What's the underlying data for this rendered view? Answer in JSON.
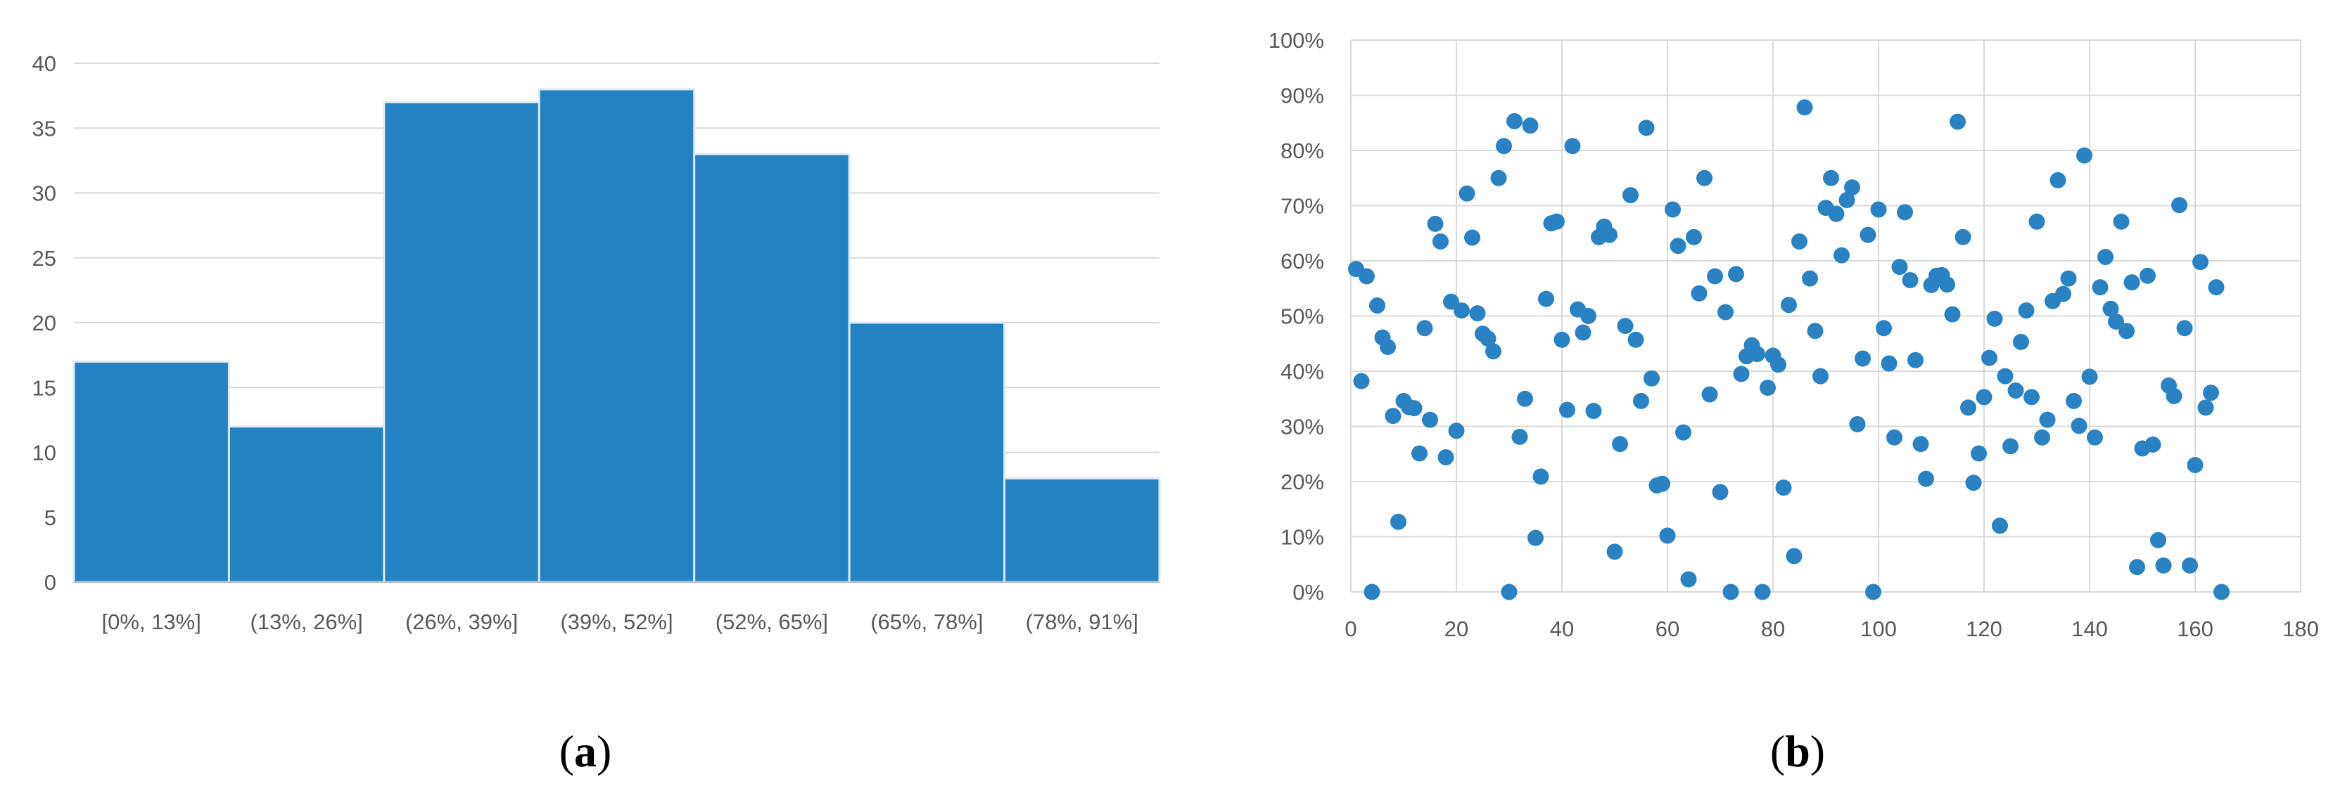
{
  "colors": {
    "bar": "#2582c2",
    "bar_edge": "#dceaf6",
    "point": "#2a82c2",
    "grid": "#d9d9d9",
    "axis": "#bfbfbf",
    "tick_text": "#595959"
  },
  "panels": {
    "a": {
      "label_open": "(",
      "label_letter": "a",
      "label_close": ")"
    },
    "b": {
      "label_open": "(",
      "label_letter": "b",
      "label_close": ")"
    }
  },
  "chart_data": [
    {
      "type": "bar",
      "title": "",
      "xlabel": "",
      "ylabel": "",
      "categories": [
        "[0%, 13%]",
        "(13%, 26%]",
        "(26%, 39%]",
        "(39%, 52%]",
        "(52%, 65%]",
        "(65%, 78%]",
        "(78%, 91%]"
      ],
      "values": [
        17,
        12,
        37,
        38,
        33,
        20,
        8
      ],
      "ylim": [
        0,
        40
      ],
      "yticks": [
        0,
        5,
        10,
        15,
        20,
        25,
        30,
        35,
        40
      ],
      "yticklabels": [
        "0",
        "5",
        "10",
        "15",
        "20",
        "25",
        "30",
        "35",
        "40"
      ],
      "grid": true,
      "legend": "none"
    },
    {
      "type": "scatter",
      "title": "",
      "xlabel": "",
      "ylabel": "",
      "xlim": [
        0,
        180
      ],
      "ylim": [
        0,
        100
      ],
      "xticks": [
        0,
        20,
        40,
        60,
        80,
        100,
        120,
        140,
        160,
        180
      ],
      "xticklabels": [
        "0",
        "20",
        "40",
        "60",
        "80",
        "100",
        "120",
        "140",
        "160",
        "180"
      ],
      "yticks": [
        0,
        10,
        20,
        30,
        40,
        50,
        60,
        70,
        80,
        90,
        100
      ],
      "yticklabels": [
        "0%",
        "10%",
        "20%",
        "30%",
        "40%",
        "50%",
        "60%",
        "70%",
        "80%",
        "90%",
        "100%"
      ],
      "grid": true,
      "legend": "none",
      "x": [
        1,
        2,
        3,
        4,
        5,
        6,
        7,
        8,
        9,
        10,
        11,
        12,
        13,
        14,
        15,
        16,
        17,
        18,
        19,
        20,
        21,
        22,
        23,
        24,
        25,
        26,
        27,
        28,
        29,
        30,
        31,
        32,
        33,
        34,
        35,
        36,
        37,
        38,
        39,
        40,
        41,
        42,
        43,
        44,
        45,
        46,
        47,
        48,
        49,
        50,
        51,
        52,
        53,
        54,
        55,
        56,
        57,
        58,
        59,
        60,
        61,
        62,
        63,
        64,
        65,
        66,
        67,
        68,
        69,
        70,
        71,
        72,
        73,
        74,
        75,
        76,
        77,
        78,
        79,
        80,
        81,
        82,
        83,
        84,
        85,
        86,
        87,
        88,
        89,
        90,
        91,
        92,
        93,
        94,
        95,
        96,
        97,
        98,
        99,
        100,
        101,
        102,
        103,
        104,
        105,
        106,
        107,
        108,
        109,
        110,
        111,
        112,
        113,
        114,
        115,
        116,
        117,
        118,
        119,
        120,
        121,
        122,
        123,
        124,
        125,
        126,
        127,
        128,
        129,
        130,
        131,
        132,
        133,
        134,
        135,
        136,
        137,
        138,
        139,
        140,
        141,
        142,
        143,
        144,
        145,
        146,
        147,
        148,
        149,
        150,
        151,
        152,
        153,
        154,
        155,
        156,
        157,
        158,
        159,
        160,
        161,
        162,
        163,
        164,
        165
      ],
      "y": [
        58.5,
        38.2,
        57.2,
        0,
        51.9,
        46.1,
        44.4,
        31.9,
        12.7,
        34.6,
        33.5,
        33.3,
        25.1,
        47.8,
        31.2,
        66.7,
        63.5,
        24.4,
        52.6,
        29.2,
        51.0,
        72.2,
        64.2,
        50.5,
        46.8,
        45.9,
        43.6,
        75.0,
        80.8,
        0,
        85.3,
        28.1,
        35.0,
        84.5,
        9.8,
        20.9,
        53.1,
        66.8,
        67.1,
        45.7,
        33.0,
        80.8,
        51.2,
        47.0,
        50.0,
        32.8,
        64.3,
        66.2,
        64.7,
        7.3,
        26.8,
        48.2,
        71.9,
        45.7,
        34.6,
        84.1,
        38.7,
        19.3,
        19.6,
        10.2,
        69.3,
        62.7,
        28.9,
        2.3,
        64.3,
        54.1,
        75.0,
        35.8,
        57.2,
        18.1,
        50.7,
        0,
        57.6,
        39.5,
        42.7,
        44.7,
        43.1,
        0,
        37.0,
        42.8,
        41.2,
        18.9,
        52.0,
        6.5,
        63.5,
        87.8,
        56.8,
        47.3,
        39.1,
        69.6,
        75.0,
        68.5,
        61.0,
        71.0,
        73.3,
        30.4,
        42.3,
        64.7,
        0,
        69.3,
        47.8,
        41.4,
        28.0,
        58.9,
        68.8,
        56.5,
        42.0,
        26.8,
        20.5,
        55.6,
        57.3,
        57.4,
        55.7,
        50.3,
        85.2,
        64.3,
        33.4,
        19.8,
        25.1,
        35.3,
        42.4,
        49.5,
        12.0,
        39.1,
        26.4,
        36.5,
        45.3,
        51.0,
        35.3,
        67.1,
        28.0,
        31.2,
        52.7,
        74.6,
        54.0,
        56.8,
        34.6,
        30.1,
        79.1,
        39.0,
        28.0,
        55.2,
        60.7,
        51.3,
        49.0,
        67.1,
        47.3,
        56.1,
        4.5,
        26.0,
        57.3,
        26.7,
        9.4,
        4.8,
        37.4,
        35.5,
        70.1,
        47.8,
        4.8,
        23.0,
        59.8,
        33.4,
        36.1,
        55.2,
        0
      ]
    }
  ]
}
